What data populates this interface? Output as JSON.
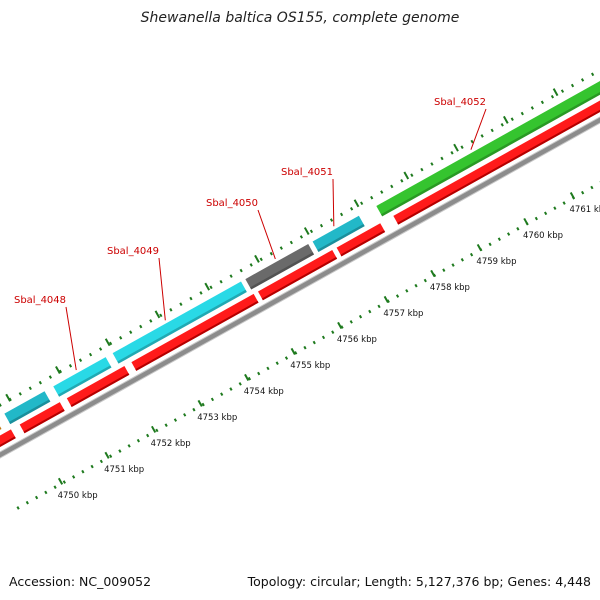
{
  "title": "Shewanella baltica OS155, complete genome",
  "footer": {
    "accession": "Accession: NC_009052",
    "summary": "Topology: circular; Length: 5,127,376 bp; Genes: 4,448"
  },
  "colors": {
    "cds_red": "#ff1a1a",
    "cds_cyan": "#29d9e6",
    "cds_teal": "#22b8c8",
    "cds_green": "#35c42f",
    "cds_gray": "#6a6a6a",
    "cds_orange": "#f59a1a",
    "backbone": "#8c8c8c",
    "tick_green": "#1e7a1e",
    "label_red": "#cc0000"
  },
  "kbp_ticks": [
    {
      "kbp": 4750,
      "label": "4750 kbp"
    },
    {
      "kbp": 4751,
      "label": "4751 kbp"
    },
    {
      "kbp": 4752,
      "label": "4752 kbp"
    },
    {
      "kbp": 4753,
      "label": "4753 kbp"
    },
    {
      "kbp": 4754,
      "label": "4754 kbp"
    },
    {
      "kbp": 4755,
      "label": "4755 kbp"
    },
    {
      "kbp": 4756,
      "label": "4756 kbp"
    },
    {
      "kbp": 4757,
      "label": "4757 kbp"
    },
    {
      "kbp": 4758,
      "label": "4758 kbp"
    },
    {
      "kbp": 4759,
      "label": "4759 kbp"
    },
    {
      "kbp": 4760,
      "label": "4760 kbp"
    },
    {
      "kbp": 4761,
      "label": "4761 kbp"
    }
  ],
  "gene_labels": [
    {
      "name": "Sbal_4048"
    },
    {
      "name": "Sbal_4049"
    },
    {
      "name": "Sbal_4050"
    },
    {
      "name": "Sbal_4051"
    },
    {
      "name": "Sbal_4052"
    }
  ]
}
